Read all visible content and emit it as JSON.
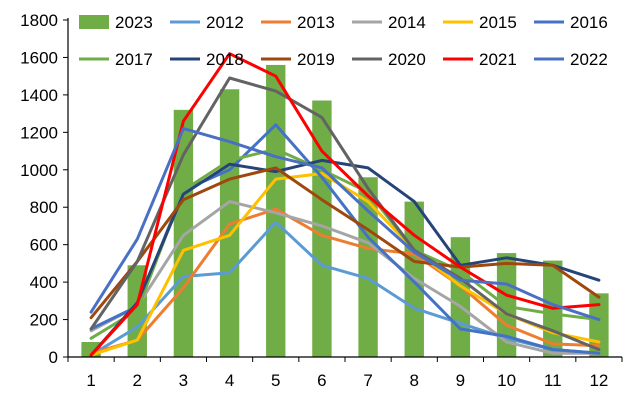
{
  "chart_data": {
    "type": "bar",
    "title": "",
    "xlabel": "",
    "ylabel": "",
    "ylim": [
      0,
      1800
    ],
    "y_ticks": [
      "0",
      "200",
      "400",
      "600",
      "800",
      "1000",
      "1200",
      "1400",
      "1600",
      "1800"
    ],
    "categories": [
      "1",
      "2",
      "3",
      "4",
      "5",
      "6",
      "7",
      "8",
      "9",
      "10",
      "11",
      "12"
    ],
    "grid": false,
    "legend_position": "top",
    "bar_series": {
      "name": "2023",
      "color": "#70ad47",
      "values": [
        80,
        490,
        1320,
        1430,
        1560,
        1370,
        960,
        830,
        640,
        555,
        515,
        340
      ]
    },
    "series": [
      {
        "name": "2012",
        "color": "#5b9bd5",
        "values": [
          10,
          160,
          430,
          450,
          720,
          490,
          420,
          260,
          180,
          100,
          40,
          20
        ]
      },
      {
        "name": "2013",
        "color": "#ed7d31",
        "values": [
          20,
          90,
          370,
          710,
          790,
          650,
          580,
          550,
          380,
          170,
          70,
          60
        ]
      },
      {
        "name": "2014",
        "color": "#a5a5a5",
        "values": [
          140,
          270,
          650,
          830,
          770,
          700,
          610,
          420,
          270,
          80,
          20,
          20
        ]
      },
      {
        "name": "2015",
        "color": "#ffc000",
        "values": [
          10,
          90,
          570,
          650,
          950,
          980,
          830,
          570,
          380,
          230,
          130,
          80
        ]
      },
      {
        "name": "2016",
        "color": "#4472c4",
        "values": [
          150,
          270,
          890,
          1000,
          1240,
          960,
          640,
          400,
          150,
          110,
          40,
          20
        ]
      },
      {
        "name": "2017",
        "color": "#70ad47",
        "values": [
          100,
          250,
          890,
          1050,
          1110,
          1000,
          880,
          570,
          460,
          270,
          230,
          200
        ]
      },
      {
        "name": "2018",
        "color": "#264478",
        "values": [
          10,
          290,
          870,
          1030,
          990,
          1050,
          1010,
          830,
          490,
          530,
          490,
          410
        ]
      },
      {
        "name": "2019",
        "color": "#9e480e",
        "values": [
          210,
          510,
          840,
          950,
          1010,
          840,
          680,
          510,
          480,
          500,
          490,
          320
        ]
      },
      {
        "name": "2020",
        "color": "#636363",
        "values": [
          150,
          510,
          1080,
          1490,
          1420,
          1280,
          900,
          570,
          420,
          230,
          140,
          40
        ]
      },
      {
        "name": "2021",
        "color": "#ff0000",
        "values": [
          10,
          280,
          1260,
          1620,
          1500,
          1100,
          860,
          650,
          480,
          330,
          260,
          280
        ]
      },
      {
        "name": "2022",
        "color": "#4a70c4",
        "values": [
          240,
          630,
          1220,
          1150,
          1070,
          1010,
          780,
          560,
          410,
          390,
          280,
          200
        ]
      }
    ]
  }
}
